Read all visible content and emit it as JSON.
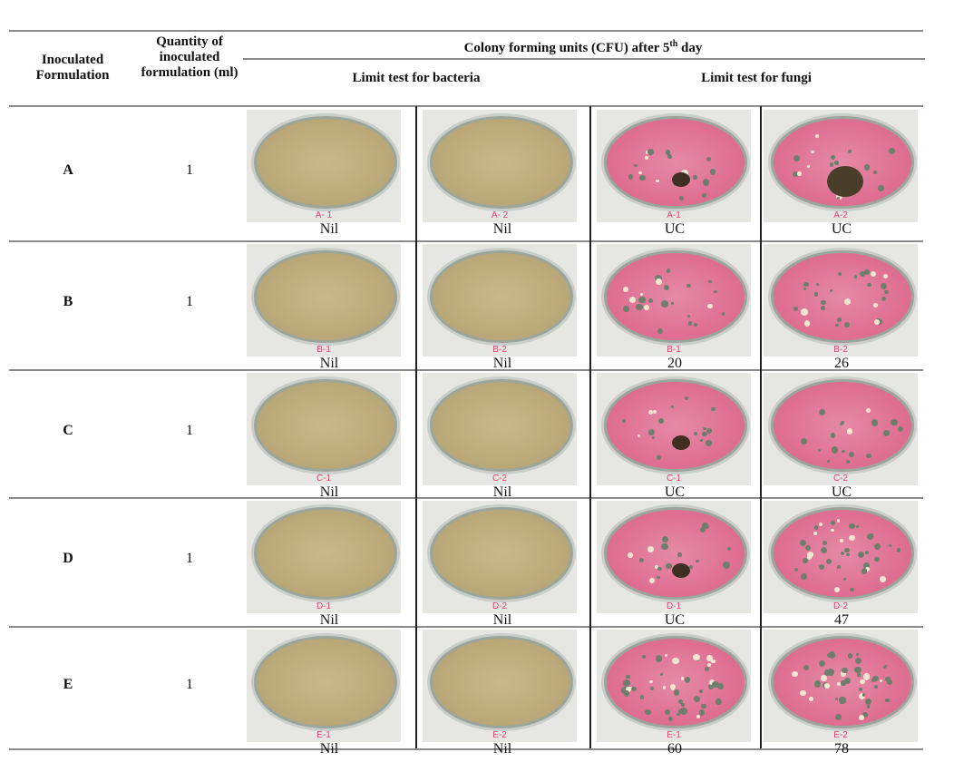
{
  "header": {
    "col_formulation": "Inoculated Formulation",
    "col_quantity": "Quantity of inoculated formulation (ml)",
    "col_cfu": "Colony forming units (CFU) after 5",
    "col_cfu_sup": "th",
    "col_cfu_end": " day",
    "sub_bacteria": "Limit test for bacteria",
    "sub_fungi": "Limit test for fungi"
  },
  "colors": {
    "bacteria_plate": "#b9a677",
    "fungi_plate": "#df6f92",
    "plate_label": "#e2436e"
  },
  "rows": [
    {
      "formulation": "A",
      "quantity": "1",
      "plates": [
        {
          "label": "A- 1",
          "type": "bacteria",
          "result": "Nil"
        },
        {
          "label": "A- 2",
          "type": "bacteria",
          "result": "Nil"
        },
        {
          "label": "A-1",
          "type": "fungi",
          "result": "UC"
        },
        {
          "label": "A-2",
          "type": "fungi",
          "result": "UC"
        }
      ]
    },
    {
      "formulation": "B",
      "quantity": "1",
      "plates": [
        {
          "label": "B-1",
          "type": "bacteria",
          "result": "Nil"
        },
        {
          "label": "B-2",
          "type": "bacteria",
          "result": "Nil"
        },
        {
          "label": "B-1",
          "type": "fungi",
          "result": "20"
        },
        {
          "label": "B-2",
          "type": "fungi",
          "result": "26"
        }
      ]
    },
    {
      "formulation": "C",
      "quantity": "1",
      "plates": [
        {
          "label": "C-1",
          "type": "bacteria",
          "result": "Nil"
        },
        {
          "label": "C-2",
          "type": "bacteria",
          "result": "Nil"
        },
        {
          "label": "C-1",
          "type": "fungi",
          "result": "UC"
        },
        {
          "label": "C-2",
          "type": "fungi",
          "result": "UC"
        }
      ]
    },
    {
      "formulation": "D",
      "quantity": "1",
      "plates": [
        {
          "label": "D-1",
          "type": "bacteria",
          "result": "Nil"
        },
        {
          "label": "D-2",
          "type": "bacteria",
          "result": "Nil"
        },
        {
          "label": "D-1",
          "type": "fungi",
          "result": "UC"
        },
        {
          "label": "D-2",
          "type": "fungi",
          "result": "47"
        }
      ]
    },
    {
      "formulation": "E",
      "quantity": "1",
      "plates": [
        {
          "label": "E-1",
          "type": "bacteria",
          "result": "Nil"
        },
        {
          "label": "E-2",
          "type": "bacteria",
          "result": "Nil"
        },
        {
          "label": "E-1",
          "type": "fungi",
          "result": "60"
        },
        {
          "label": "E-2",
          "type": "fungi",
          "result": "78"
        }
      ]
    }
  ]
}
